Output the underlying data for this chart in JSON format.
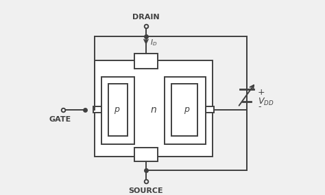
{
  "bg_color": "#f0f0f0",
  "line_color": "#404040",
  "text_color": "#404040",
  "lw": 1.4,
  "labels": {
    "drain": "DRAIN",
    "source": "SOURCE",
    "gate": "GATE",
    "n": "n",
    "p_left": "p",
    "p_right": "p",
    "id": "I",
    "id_sub": "D",
    "vdd": "V",
    "vdd_sub": "DD",
    "plus": "+",
    "minus": "-"
  }
}
